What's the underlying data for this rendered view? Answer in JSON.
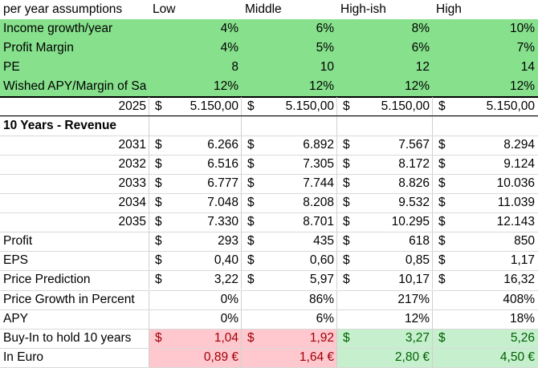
{
  "header": {
    "label": "per year assumptions",
    "scenarios": [
      "Low",
      "Middle",
      "High-ish",
      "High"
    ]
  },
  "assumptions": [
    {
      "label": "Income growth/year",
      "values": [
        "4%",
        "6%",
        "8%",
        "10%"
      ]
    },
    {
      "label": "Profit Margin",
      "values": [
        "4%",
        "5%",
        "6%",
        "7%"
      ]
    },
    {
      "label": "PE",
      "values": [
        "8",
        "10",
        "12",
        "14"
      ]
    },
    {
      "label": "Wished APY/Margin of Sa",
      "values": [
        "12%",
        "12%",
        "12%",
        "12%"
      ]
    }
  ],
  "base_year": {
    "label": "2025",
    "currency": "$",
    "values": [
      "5.150,00",
      "5.150,00",
      "5.150,00",
      "5.150,00"
    ]
  },
  "revenue_section": {
    "title": "10 Years - Revenue"
  },
  "revenue_rows": [
    {
      "year": "2031",
      "values": [
        "6.266",
        "6.892",
        "7.567",
        "8.294"
      ]
    },
    {
      "year": "2032",
      "values": [
        "6.516",
        "7.305",
        "8.172",
        "9.124"
      ]
    },
    {
      "year": "2033",
      "values": [
        "6.777",
        "7.744",
        "8.826",
        "10.036"
      ]
    },
    {
      "year": "2034",
      "values": [
        "7.048",
        "8.208",
        "9.532",
        "11.039"
      ]
    },
    {
      "year": "2035",
      "values": [
        "7.330",
        "8.701",
        "10.295",
        "12.143"
      ]
    }
  ],
  "metrics": [
    {
      "label": "Profit",
      "currency": "$",
      "values": [
        "293",
        "435",
        "618",
        "850"
      ]
    },
    {
      "label": "EPS",
      "currency": "$",
      "values": [
        "0,40",
        "0,60",
        "0,85",
        "1,17"
      ]
    },
    {
      "label": "Price Prediction",
      "currency": "$",
      "values": [
        "3,22",
        "5,97",
        "10,17",
        "16,32"
      ]
    },
    {
      "label": "Price Growth in Percent",
      "currency": "",
      "values": [
        "0%",
        "86%",
        "217%",
        "408%"
      ]
    },
    {
      "label": "APY",
      "currency": "",
      "values": [
        "0%",
        "6%",
        "12%",
        "18%"
      ]
    }
  ],
  "buy_in": {
    "label": "Buy-In to hold 10 years",
    "currency": "$",
    "values": [
      "1,04",
      "1,92",
      "3,27",
      "5,26"
    ]
  },
  "euro": {
    "label": "In Euro",
    "values": [
      "0,89 €",
      "1,64 €",
      "2,80 €",
      "4,50 €"
    ]
  },
  "colors": {
    "assumption_fill": "#86e08c",
    "bad_fill": "#ffc7ce",
    "bad_text": "#9c0006",
    "good_fill": "#c6efce",
    "good_text": "#006100"
  }
}
